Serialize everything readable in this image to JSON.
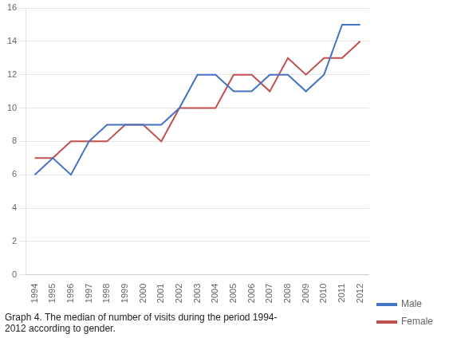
{
  "chart_data": {
    "type": "line",
    "title": "Graph 4. The median of number of visits during the period 1994-\n2012 according to gender.",
    "x": [
      1994,
      1995,
      1996,
      1997,
      1998,
      1999,
      2000,
      2001,
      2002,
      2003,
      2004,
      2005,
      2006,
      2007,
      2008,
      2009,
      2010,
      2011,
      2012
    ],
    "series": [
      {
        "name": "Male",
        "color": "#4472C4",
        "values": [
          6,
          7,
          6,
          8,
          9,
          9,
          9,
          9,
          10,
          12,
          12,
          11,
          11,
          12,
          12,
          11,
          12,
          15,
          15
        ]
      },
      {
        "name": "Female",
        "color": "#C0504D",
        "values": [
          7,
          7,
          8,
          8,
          8,
          9,
          9,
          8,
          10,
          10,
          10,
          12,
          12,
          11,
          13,
          12,
          13,
          13,
          14
        ]
      }
    ],
    "xlim": [
      1993.5,
      2012.5
    ],
    "xticks": [
      1994,
      1995,
      1996,
      1997,
      1998,
      1999,
      2000,
      2001,
      2002,
      2003,
      2004,
      2005,
      2006,
      2007,
      2008,
      2009,
      2010,
      2011,
      2012
    ],
    "ylim": [
      0,
      16
    ],
    "yticks": [
      0,
      2,
      4,
      6,
      8,
      10,
      12,
      14,
      16
    ],
    "grid": "y",
    "legend": "lower right"
  }
}
